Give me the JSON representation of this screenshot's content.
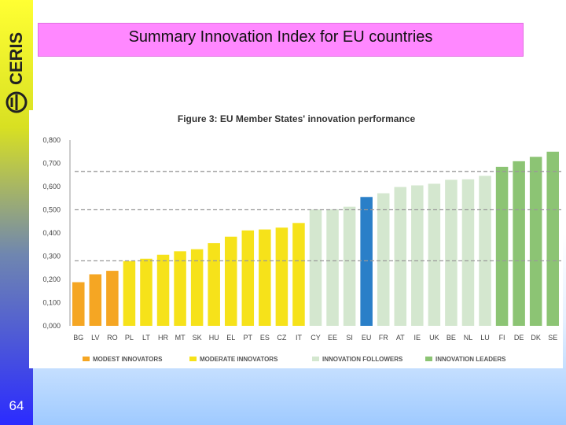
{
  "slide": {
    "title": "Summary Innovation Index for EU countries",
    "page_number": "64",
    "logo_text": "CERIS"
  },
  "colors": {
    "modest": "#f5a623",
    "moderate": "#f6e21a",
    "followers": "#d4e7cf",
    "leaders": "#8cc474",
    "eu": "#2a7fc8",
    "title_bg": "#ff88ff"
  },
  "chart_data": {
    "type": "bar",
    "title": "Figure 3: EU Member States' innovation performance",
    "ylim": [
      0,
      0.8
    ],
    "yticks": [
      "0,000",
      "0,100",
      "0,200",
      "0,300",
      "0,400",
      "0,500",
      "0,600",
      "0,700",
      "0,800"
    ],
    "grid": false,
    "dashed_lines": [
      0.28,
      0.5,
      0.665
    ],
    "categories": [
      "BG",
      "LV",
      "RO",
      "PL",
      "LT",
      "HR",
      "MT",
      "SK",
      "HU",
      "EL",
      "PT",
      "ES",
      "CZ",
      "IT",
      "CY",
      "EE",
      "SI",
      "EU",
      "FR",
      "AT",
      "IE",
      "UK",
      "BE",
      "NL",
      "LU",
      "FI",
      "DE",
      "DK",
      "SE"
    ],
    "values": [
      0.188,
      0.222,
      0.237,
      0.279,
      0.289,
      0.306,
      0.321,
      0.33,
      0.356,
      0.384,
      0.411,
      0.415,
      0.423,
      0.443,
      0.501,
      0.502,
      0.513,
      0.555,
      0.571,
      0.598,
      0.605,
      0.612,
      0.629,
      0.631,
      0.646,
      0.685,
      0.709,
      0.728,
      0.75
    ],
    "groups": [
      "modest",
      "modest",
      "modest",
      "moderate",
      "moderate",
      "moderate",
      "moderate",
      "moderate",
      "moderate",
      "moderate",
      "moderate",
      "moderate",
      "moderate",
      "moderate",
      "followers",
      "followers",
      "followers",
      "eu",
      "followers",
      "followers",
      "followers",
      "followers",
      "followers",
      "followers",
      "followers",
      "leaders",
      "leaders",
      "leaders",
      "leaders"
    ],
    "legend": [
      {
        "key": "modest",
        "label": "MODEST INNOVATORS"
      },
      {
        "key": "moderate",
        "label": "MODERATE INNOVATORS"
      },
      {
        "key": "followers",
        "label": "INNOVATION FOLLOWERS"
      },
      {
        "key": "leaders",
        "label": "INNOVATION LEADERS"
      }
    ],
    "legend_position": "bottom"
  }
}
